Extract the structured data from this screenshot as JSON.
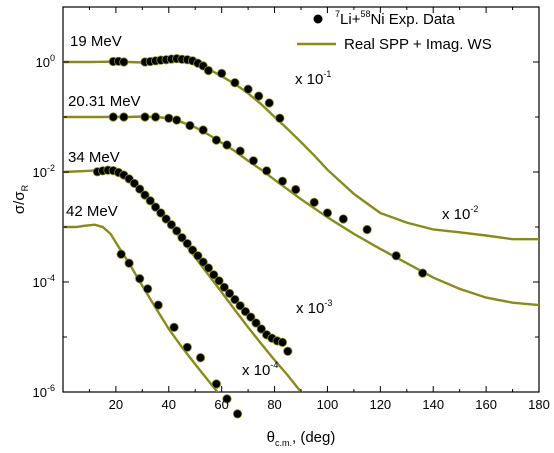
{
  "chart_data": {
    "type": "scatter",
    "xlabel": {
      "main": "θ",
      "sub": "c.m.",
      "rest": ", (deg)"
    },
    "ylabel": {
      "main": "σ/σ",
      "sub": "R"
    },
    "xlim": [
      0,
      180
    ],
    "ylim_log10": [
      -6,
      1
    ],
    "y_scale": "log",
    "x_ticks": [
      20,
      40,
      60,
      80,
      100,
      120,
      140,
      160,
      180
    ],
    "y_ticks": [
      {
        "value": 1,
        "base": "10",
        "exp": "0"
      },
      {
        "value": 0.01,
        "base": "10",
        "exp": "-2"
      },
      {
        "value": 0.0001,
        "base": "10",
        "exp": "-4"
      },
      {
        "value": 1e-06,
        "base": "10",
        "exp": "-6"
      }
    ],
    "legend": {
      "placement": "top-right",
      "data_label": {
        "sup1": "7",
        "text1": "Li+",
        "sup2": "58",
        "text2": "Ni Exp. Data"
      },
      "fit_label": "Real SPP + Imag. WS"
    },
    "colors": {
      "fit": "#8a8a1c",
      "data": "#000000"
    },
    "series": [
      {
        "energy": "19 MeV",
        "scale": {
          "prefix": "x ",
          "base": "10",
          "exp": "-1"
        },
        "fit": [
          [
            0,
            1
          ],
          [
            10,
            1
          ],
          [
            15,
            1.01
          ],
          [
            20,
            1.02
          ],
          [
            25,
            1.0
          ],
          [
            30,
            0.98
          ],
          [
            35,
            1.02
          ],
          [
            40,
            1.06
          ],
          [
            45,
            1.05
          ],
          [
            50,
            0.95
          ],
          [
            55,
            0.75
          ],
          [
            60,
            0.55
          ],
          [
            65,
            0.4
          ],
          [
            70,
            0.27
          ],
          [
            75,
            0.17
          ],
          [
            80,
            0.1
          ],
          [
            85,
            0.06
          ],
          [
            90,
            0.035
          ],
          [
            95,
            0.02
          ],
          [
            100,
            0.011
          ],
          [
            110,
            0.004
          ],
          [
            120,
            0.0018
          ],
          [
            130,
            0.0012
          ],
          [
            140,
            0.0009
          ],
          [
            150,
            0.0008
          ],
          [
            160,
            0.0007
          ],
          [
            170,
            0.0006
          ],
          [
            180,
            0.0006
          ]
        ],
        "points": [
          [
            19,
            1.02
          ],
          [
            21,
            1.03
          ],
          [
            23,
            1.0
          ],
          [
            31,
            1.0
          ],
          [
            33,
            1.02
          ],
          [
            35,
            1.05
          ],
          [
            37,
            1.08
          ],
          [
            39,
            1.1
          ],
          [
            41,
            1.13
          ],
          [
            43,
            1.15
          ],
          [
            45,
            1.12
          ],
          [
            47,
            1.1
          ],
          [
            49,
            1.05
          ],
          [
            51,
            0.95
          ],
          [
            53,
            0.85
          ],
          [
            55,
            0.7
          ],
          [
            60,
            0.62
          ],
          [
            65,
            0.42
          ],
          [
            70,
            0.32
          ],
          [
            74,
            0.24
          ],
          [
            78,
            0.18
          ],
          [
            82,
            0.095
          ]
        ]
      },
      {
        "energy": "20.31 MeV",
        "scale": {
          "prefix": "x ",
          "base": "10",
          "exp": "-2"
        },
        "fit": [
          [
            0,
            0.1
          ],
          [
            10,
            0.1
          ],
          [
            15,
            0.1
          ],
          [
            20,
            0.101
          ],
          [
            25,
            0.1
          ],
          [
            30,
            0.102
          ],
          [
            35,
            0.1
          ],
          [
            40,
            0.095
          ],
          [
            45,
            0.08
          ],
          [
            50,
            0.065
          ],
          [
            55,
            0.048
          ],
          [
            60,
            0.034
          ],
          [
            65,
            0.024
          ],
          [
            70,
            0.016
          ],
          [
            75,
            0.011
          ],
          [
            80,
            0.0072
          ],
          [
            90,
            0.0032
          ],
          [
            100,
            0.0015
          ],
          [
            110,
            0.00075
          ],
          [
            120,
            0.0004
          ],
          [
            130,
            0.00022
          ],
          [
            140,
            0.00012
          ],
          [
            150,
            7.5e-05
          ],
          [
            160,
            5.2e-05
          ],
          [
            170,
            4.2e-05
          ],
          [
            180,
            3.8e-05
          ]
        ],
        "points": [
          [
            19,
            0.1
          ],
          [
            23,
            0.1
          ],
          [
            31,
            0.1
          ],
          [
            35,
            0.1
          ],
          [
            40,
            0.095
          ],
          [
            43,
            0.088
          ],
          [
            48,
            0.07
          ],
          [
            53,
            0.058
          ],
          [
            58,
            0.038
          ],
          [
            62,
            0.031
          ],
          [
            67,
            0.024
          ],
          [
            72,
            0.016
          ],
          [
            77,
            0.0105
          ],
          [
            83,
            0.0068
          ],
          [
            88,
            0.0048
          ],
          [
            95,
            0.0028
          ],
          [
            100,
            0.0018
          ],
          [
            106,
            0.0014
          ],
          [
            115,
            0.0009
          ],
          [
            126,
            0.0003
          ],
          [
            136,
            0.000145
          ]
        ]
      },
      {
        "energy": "34 MeV",
        "scale": {
          "prefix": "x ",
          "base": "10",
          "exp": "-3"
        },
        "fit": [
          [
            0,
            0.01
          ],
          [
            10,
            0.0105
          ],
          [
            15,
            0.011
          ],
          [
            17,
            0.0115
          ],
          [
            20,
            0.0105
          ],
          [
            25,
            0.0078
          ],
          [
            30,
            0.0045
          ],
          [
            35,
            0.0024
          ],
          [
            40,
            0.0012
          ],
          [
            45,
            0.00058
          ],
          [
            50,
            0.00028
          ],
          [
            55,
            0.000135
          ],
          [
            60,
            6.5e-05
          ],
          [
            65,
            3.1e-05
          ],
          [
            70,
            1.5e-05
          ],
          [
            75,
            7.5e-06
          ],
          [
            80,
            3.8e-06
          ],
          [
            85,
            2e-06
          ],
          [
            90,
            1e-06
          ],
          [
            95,
            5.5e-07
          ],
          [
            100,
            3e-07
          ],
          [
            105,
            1.6e-07
          ],
          [
            108,
            1e-07
          ]
        ],
        "points": [
          [
            13,
            0.0101
          ],
          [
            15,
            0.0105
          ],
          [
            17,
            0.0108
          ],
          [
            19,
            0.0106
          ],
          [
            21,
            0.0098
          ],
          [
            23,
            0.0088
          ],
          [
            25,
            0.0075
          ],
          [
            27,
            0.0062
          ],
          [
            29,
            0.0049
          ],
          [
            31,
            0.0038
          ],
          [
            33,
            0.003
          ],
          [
            35,
            0.0023
          ],
          [
            37,
            0.0018
          ],
          [
            39,
            0.0014
          ],
          [
            41,
            0.0011
          ],
          [
            43,
            0.00085
          ],
          [
            45,
            0.00064
          ],
          [
            47,
            0.0005
          ],
          [
            49,
            0.00038
          ],
          [
            51,
            0.0003
          ],
          [
            53,
            0.00023
          ],
          [
            55,
            0.00018
          ],
          [
            57,
            0.000135
          ],
          [
            59,
            0.000105
          ],
          [
            61,
            8e-05
          ],
          [
            63,
            6.2e-05
          ],
          [
            65,
            4.8e-05
          ],
          [
            67,
            3.7e-05
          ],
          [
            69,
            2.9e-05
          ],
          [
            71,
            2.3e-05
          ],
          [
            73,
            1.8e-05
          ],
          [
            75,
            1.4e-05
          ],
          [
            77,
            1.1e-05
          ],
          [
            79,
            9.5e-06
          ],
          [
            81,
            8.5e-06
          ],
          [
            83,
            8e-06
          ],
          [
            85,
            5.5e-06
          ]
        ]
      },
      {
        "energy": "42 MeV",
        "scale": {
          "prefix": "x ",
          "base": "10",
          "exp": "-4"
        },
        "fit": [
          [
            0,
            0.001
          ],
          [
            5,
            0.001
          ],
          [
            8,
            0.00105
          ],
          [
            12,
            0.0011
          ],
          [
            15,
            0.001
          ],
          [
            18,
            0.00075
          ],
          [
            20,
            0.00052
          ],
          [
            25,
            0.00022
          ],
          [
            30,
            8.5e-05
          ],
          [
            35,
            3.4e-05
          ],
          [
            40,
            1.4e-05
          ],
          [
            45,
            6.5e-06
          ],
          [
            50,
            3.2e-06
          ],
          [
            55,
            1.6e-06
          ],
          [
            60,
            8e-07
          ],
          [
            65,
            4e-07
          ],
          [
            70,
            1.8e-07
          ],
          [
            75,
            8e-08
          ]
        ],
        "points": [
          [
            22,
            0.00032
          ],
          [
            25,
            0.00022
          ],
          [
            29,
            0.000115
          ],
          [
            32,
            7.5e-05
          ],
          [
            36,
            3.8e-05
          ],
          [
            42,
            1.5e-05
          ],
          [
            47,
            6.5e-06
          ],
          [
            52,
            4.2e-06
          ],
          [
            58,
            1.4e-06
          ],
          [
            62,
            7.5e-07
          ],
          [
            66,
            4e-07
          ]
        ]
      }
    ]
  }
}
